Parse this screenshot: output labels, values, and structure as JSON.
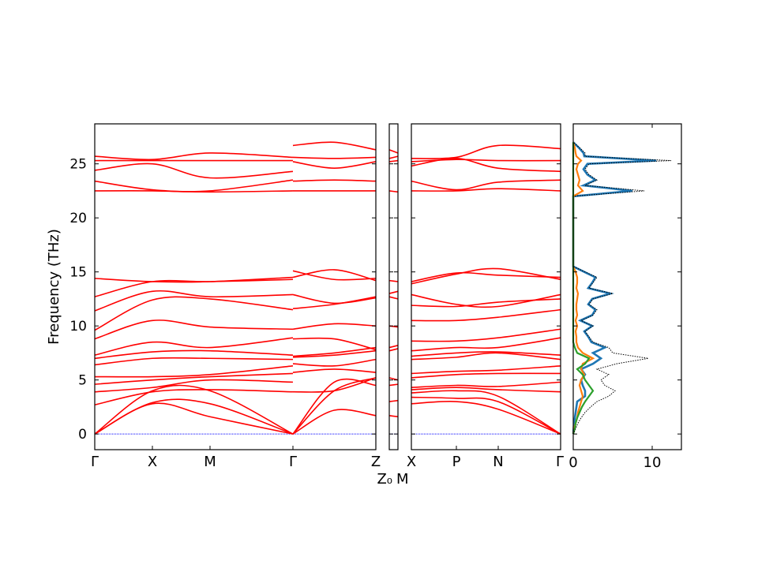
{
  "chart_data": {
    "type": "line",
    "ylabel": "Frequency (THz)",
    "ylim": [
      -1.45,
      28.7
    ],
    "yticks": [
      0,
      5,
      10,
      15,
      20,
      25
    ],
    "colors": {
      "bands": "#ff0000",
      "zero_line": "#0000ff",
      "dos_total": "#000000",
      "dos_series": [
        "#1f77b4",
        "#ff7f0e",
        "#2ca02c"
      ]
    },
    "band_panels": [
      {
        "kpoint_labels": [
          "Γ",
          "X",
          "M",
          "Γ",
          "Z"
        ],
        "segments": [
          {
            "from": "Γ",
            "path": [
              "Γ",
              "X",
              "M",
              "Γ"
            ],
            "node_fraction": [
              0,
              0.205,
              0.41,
              0.705
            ],
            "bands": [
              [
                0,
                2.8,
                1.6,
                0
              ],
              [
                0,
                2.9,
                2.8,
                0
              ],
              [
                0,
                4.0,
                4.0,
                0
              ],
              [
                2.7,
                3.9,
                4.1,
                3.9
              ],
              [
                3.9,
                4.3,
                5.0,
                4.8
              ],
              [
                4.6,
                5.0,
                5.3,
                5.6
              ],
              [
                5.3,
                5.3,
                5.5,
                6.3
              ],
              [
                6.4,
                7.0,
                7.0,
                6.9
              ],
              [
                7.0,
                7.6,
                7.7,
                7.3
              ],
              [
                7.3,
                8.5,
                8.0,
                8.9
              ],
              [
                8.8,
                10.5,
                9.9,
                9.7
              ],
              [
                9.6,
                12.4,
                12.5,
                11.5
              ],
              [
                11.4,
                13.2,
                12.7,
                12.9
              ],
              [
                12.7,
                14.1,
                14.1,
                14.3
              ],
              [
                14.4,
                14.1,
                14.1,
                14.5
              ],
              [
                22.5,
                22.5,
                22.4,
                22.5
              ],
              [
                23.4,
                22.6,
                22.5,
                23.5
              ],
              [
                24.4,
                25.0,
                23.7,
                24.3
              ],
              [
                25.3,
                25.3,
                25.3,
                25.3
              ],
              [
                25.7,
                25.4,
                26.0,
                25.6
              ]
            ]
          },
          {
            "from": "Γ",
            "path": [
              "Γ",
              "",
              "Z"
            ],
            "node_fraction": [
              0.705,
              0.852,
              1
            ],
            "bands": [
              [
                0,
                2.2,
                1.7
              ],
              [
                0,
                4.0,
                5.2
              ],
              [
                0,
                4.8,
                4.5
              ],
              [
                3.9,
                4.0,
                5.2
              ],
              [
                5.7,
                6.0,
                5.7
              ],
              [
                6.5,
                6.3,
                6.9
              ],
              [
                7.1,
                7.3,
                7.7
              ],
              [
                7.2,
                7.5,
                8.0
              ],
              [
                8.8,
                8.8,
                7.8
              ],
              [
                9.7,
                10.2,
                10.0
              ],
              [
                11.6,
                12.0,
                12.7
              ],
              [
                12.9,
                12.1,
                12.6
              ],
              [
                14.5,
                15.2,
                14.2
              ],
              [
                15.1,
                14.3,
                14.4
              ],
              [
                22.5,
                22.5,
                22.5
              ],
              [
                23.4,
                23.5,
                23.4
              ],
              [
                25.2,
                24.6,
                25.2
              ],
              [
                25.6,
                25.5,
                25.6
              ],
              [
                26.7,
                27.0,
                26.3
              ]
            ]
          }
        ]
      },
      {
        "kpoint_labels": [
          "Z₀",
          "M"
        ],
        "segments": [
          {
            "path": [
              "Z₀",
              "M"
            ],
            "node_fraction": [
              0,
              1
            ],
            "bands": [
              [
                1.7,
                1.6
              ],
              [
                3.0,
                3.1
              ],
              [
                4.5,
                4.6
              ],
              [
                5.2,
                5.0
              ],
              [
                7.7,
                7.9
              ],
              [
                8.0,
                8.2
              ],
              [
                10.0,
                9.9
              ],
              [
                12.7,
                12.5
              ],
              [
                13.0,
                13.2
              ],
              [
                14.2,
                14.1
              ],
              [
                22.5,
                22.4
              ],
              [
                25.2,
                25.3
              ],
              [
                25.5,
                25.7
              ],
              [
                26.3,
                26.0
              ]
            ]
          }
        ]
      },
      {
        "kpoint_labels": [
          "X",
          "P",
          "N",
          "Γ"
        ],
        "segments": [
          {
            "path": [
              "X",
              "P",
              "N",
              "Γ"
            ],
            "node_fraction": [
              0,
              0.3,
              0.58,
              1
            ],
            "bands": [
              [
                2.8,
                3.0,
                2.3,
                0
              ],
              [
                3.4,
                3.3,
                3.0,
                0
              ],
              [
                3.8,
                4.0,
                3.5,
                0
              ],
              [
                4.1,
                4.3,
                4.1,
                3.9
              ],
              [
                4.3,
                4.5,
                4.4,
                4.8
              ],
              [
                5.2,
                5.5,
                5.6,
                5.6
              ],
              [
                5.6,
                5.8,
                5.9,
                6.3
              ],
              [
                6.9,
                7.1,
                7.5,
                6.9
              ],
              [
                7.2,
                7.5,
                7.6,
                7.3
              ],
              [
                7.7,
                8.0,
                8.0,
                8.9
              ],
              [
                8.6,
                8.6,
                8.9,
                9.7
              ],
              [
                10.5,
                10.5,
                10.8,
                11.5
              ],
              [
                11.9,
                11.8,
                12.2,
                12.5
              ],
              [
                12.9,
                12.0,
                11.8,
                12.9
              ],
              [
                13.9,
                14.8,
                15.3,
                14.3
              ],
              [
                14.1,
                14.9,
                14.7,
                14.5
              ],
              [
                22.5,
                22.5,
                22.7,
                22.5
              ],
              [
                23.4,
                22.6,
                23.3,
                23.5
              ],
              [
                24.8,
                25.5,
                24.6,
                24.3
              ],
              [
                25.2,
                25.4,
                25.3,
                25.3
              ],
              [
                25.5,
                25.6,
                26.7,
                26.4
              ]
            ]
          }
        ]
      }
    ],
    "dos": {
      "xlim": [
        0,
        13.7
      ],
      "xticks": [
        0,
        10
      ],
      "frequency": [
        0,
        0.5,
        1,
        1.5,
        2,
        2.5,
        3,
        3.5,
        4,
        4.5,
        5,
        5.5,
        6,
        6.5,
        7,
        7.5,
        8,
        8.5,
        9,
        9.5,
        10,
        10.5,
        11,
        11.5,
        12,
        12.5,
        13,
        13.5,
        14,
        14.5,
        15,
        15.5,
        22,
        22.5,
        23,
        23.5,
        24,
        24.5,
        25,
        25.3,
        25.7,
        26,
        26.5,
        27
      ],
      "total": [
        0,
        0.3,
        0.6,
        1.0,
        1.5,
        2.2,
        3.0,
        4.5,
        5.3,
        4.0,
        3.5,
        4.5,
        3.0,
        5.5,
        9.5,
        5.0,
        4.5,
        2.5,
        2.0,
        1.5,
        2.5,
        1.0,
        2.5,
        3.0,
        2.0,
        2.5,
        5.0,
        2.0,
        2.5,
        3.0,
        1.5,
        0,
        0,
        9.0,
        1.5,
        3.0,
        2.0,
        1.5,
        2.0,
        12.4,
        1.5,
        1.5,
        0.8,
        0
      ],
      "series": [
        {
          "values": [
            0,
            0.05,
            0.1,
            0.2,
            0.3,
            0.4,
            0.5,
            1.5,
            1.5,
            1.2,
            1.0,
            1.5,
            1.0,
            2.5,
            3.5,
            2.5,
            4.0,
            2.3,
            1.9,
            1.4,
            2.4,
            0.9,
            2.4,
            2.8,
            1.9,
            2.4,
            4.7,
            1.9,
            2.4,
            2.8,
            1.4,
            0,
            0,
            7.5,
            1.3,
            2.8,
            1.8,
            1.3,
            1.8,
            10.5,
            1.4,
            1.3,
            0.7,
            0
          ]
        },
        {
          "values": [
            0,
            0.1,
            0.3,
            0.5,
            0.6,
            0.8,
            1.0,
            1.2,
            1.0,
            0.8,
            1.0,
            1.4,
            1.0,
            1.2,
            2.5,
            1.2,
            0.6,
            0.4,
            0.4,
            0.3,
            0.5,
            0.3,
            0.5,
            0.4,
            0.4,
            0.5,
            0.6,
            0.4,
            0.5,
            0.5,
            0.3,
            0,
            0,
            1.2,
            0.6,
            0.8,
            0.6,
            0.4,
            0.6,
            1.0,
            0.4,
            0.3,
            0.2,
            0
          ]
        },
        {
          "values": [
            0,
            0.2,
            0.3,
            0.5,
            0.8,
            1.1,
            1.5,
            2.0,
            2.5,
            2.0,
            1.5,
            1.2,
            0.5,
            1.5,
            2.0,
            0.5,
            0.2,
            0,
            0,
            0,
            0,
            0,
            0,
            0,
            0,
            0,
            0,
            0,
            0,
            0,
            0,
            0,
            0,
            0,
            0,
            0,
            0,
            0,
            0,
            0,
            0,
            0,
            0,
            0
          ]
        }
      ]
    }
  }
}
